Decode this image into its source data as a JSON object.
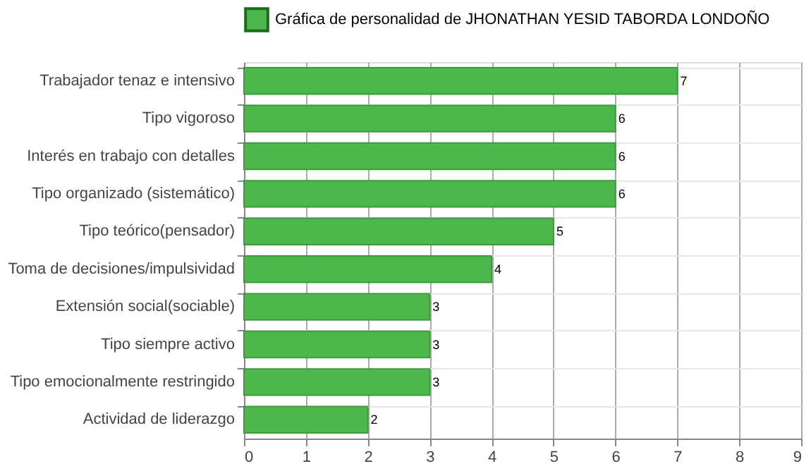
{
  "chart_data": {
    "type": "bar",
    "orientation": "horizontal",
    "categories": [
      "Trabajador tenaz e intensivo",
      "Tipo vigoroso",
      "Interés en trabajo con detalles",
      "Tipo organizado (sistemático)",
      "Tipo teórico(pensador)",
      "Toma de decisiones/impulsividad",
      "Extensión social(sociable)",
      "Tipo siempre activo",
      "Tipo emocionalmente restringido",
      "Actividad de liderazgo"
    ],
    "series": [
      {
        "name": "Gráfica de personalidad de JHONATHAN YESID TABORDA LONDOÑO",
        "color": "#4cb84c",
        "values": [
          7,
          6,
          6,
          6,
          5,
          4,
          3,
          3,
          3,
          2
        ]
      }
    ],
    "xlim": [
      0,
      9
    ],
    "xticks": [
      0,
      1,
      2,
      3,
      4,
      5,
      6,
      7,
      8,
      9
    ],
    "grid": true,
    "legend": "top",
    "data_labels": true
  }
}
